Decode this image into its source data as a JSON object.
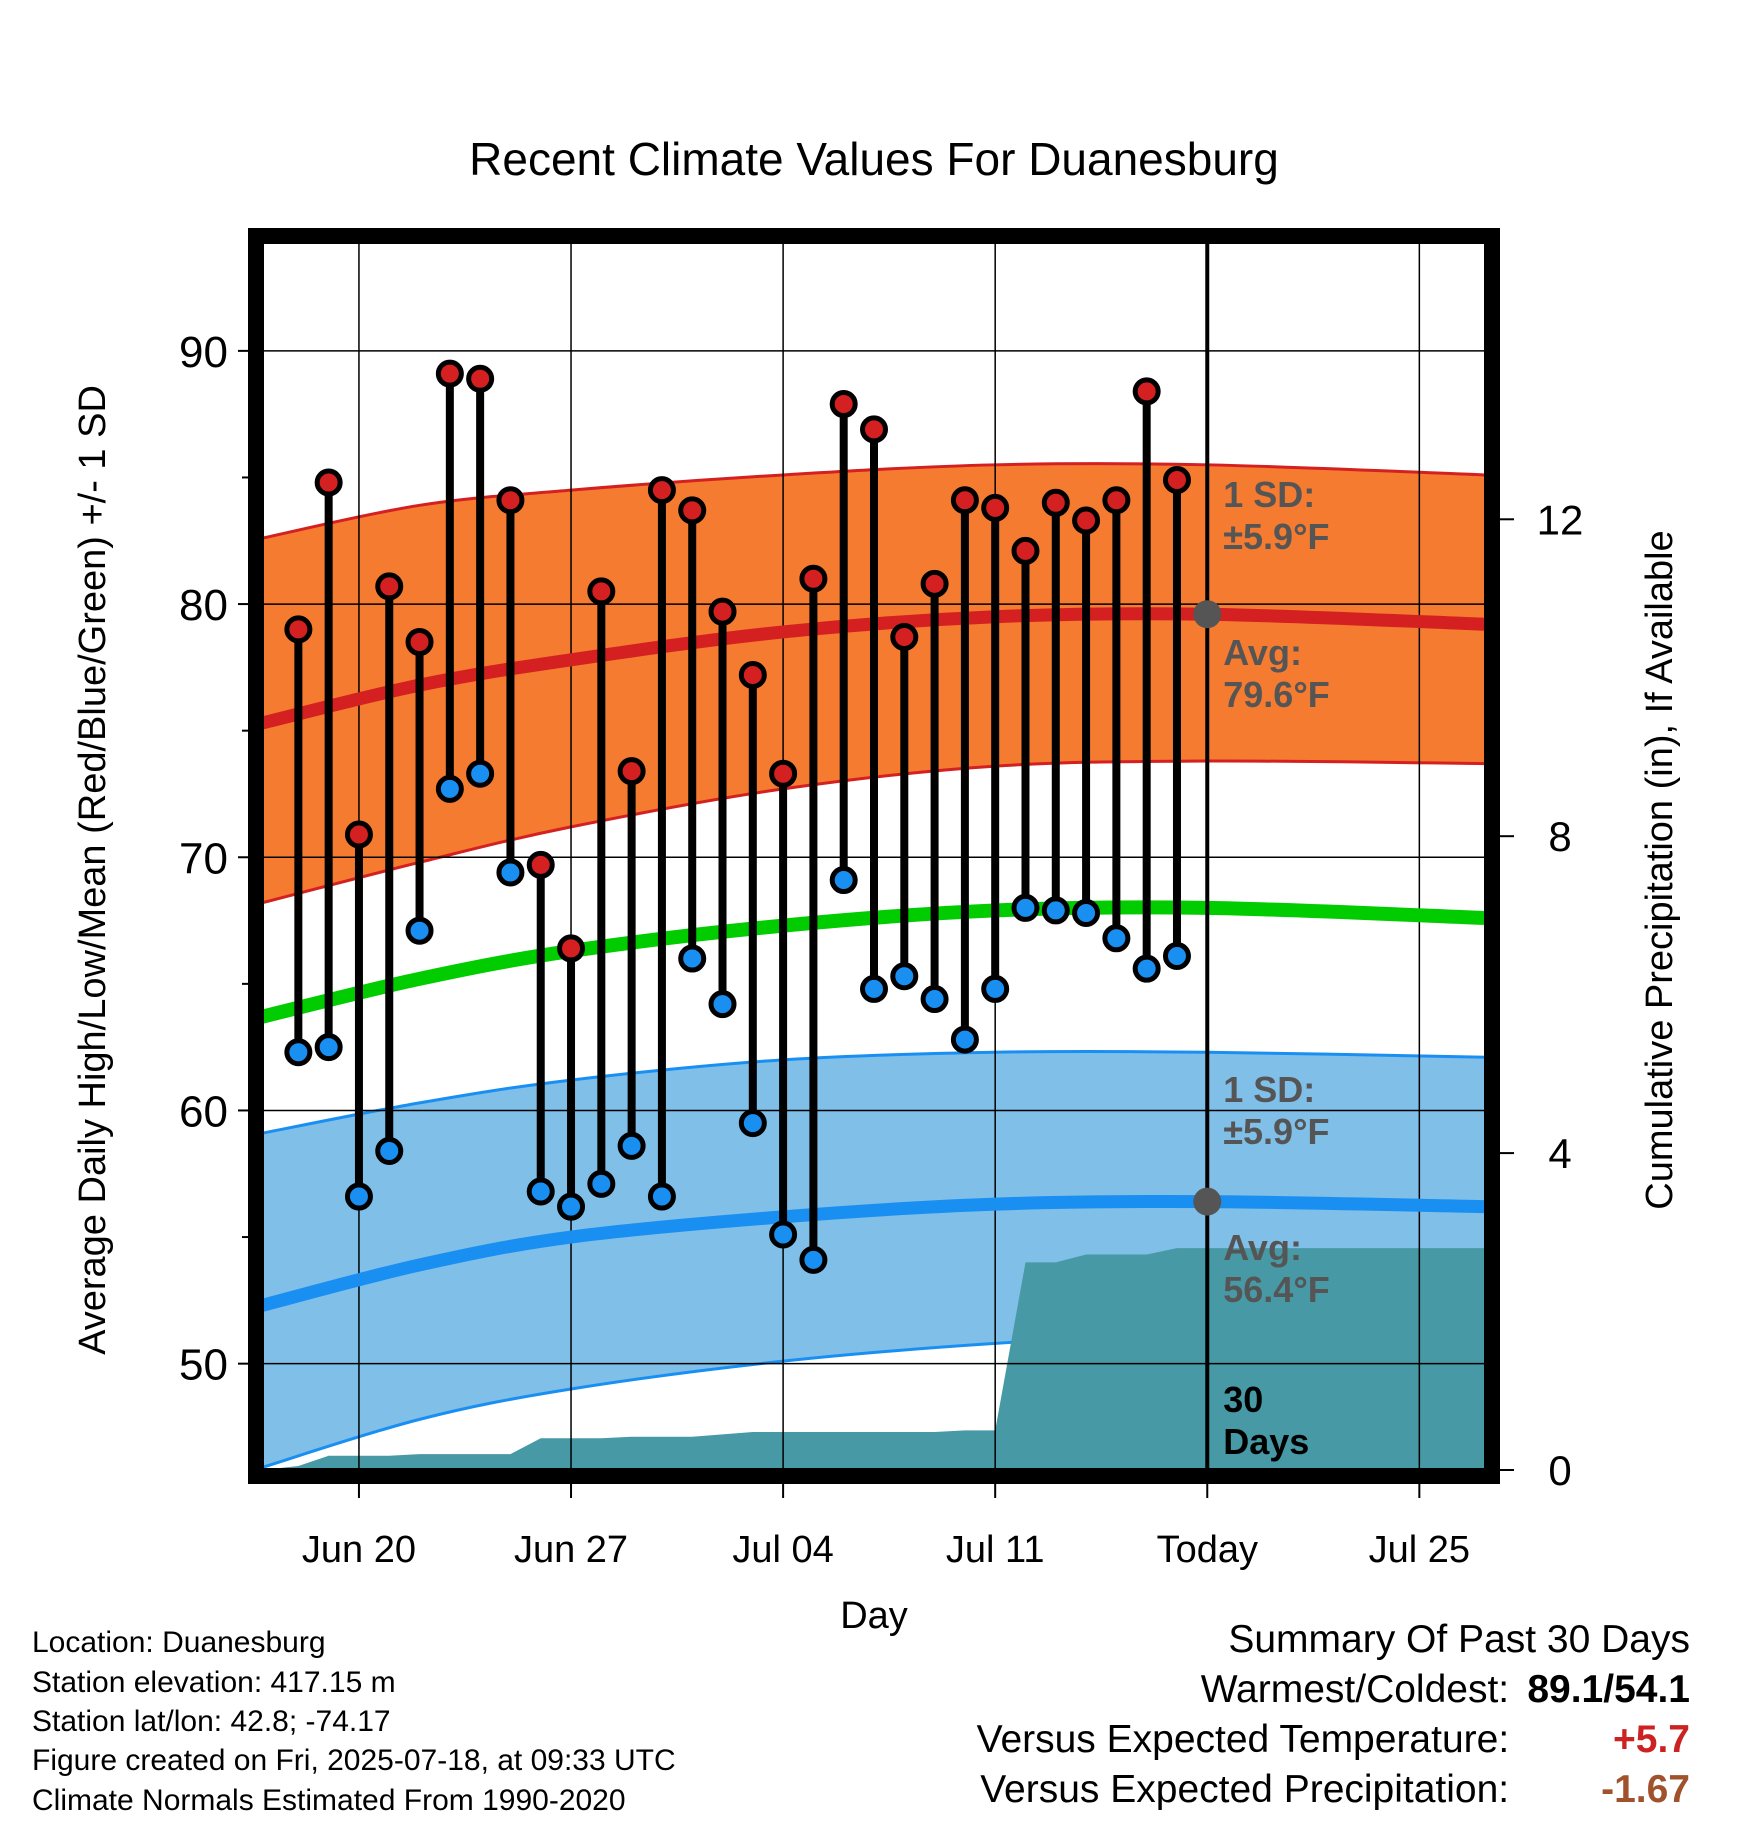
{
  "chart_data": {
    "type": "line",
    "title": "Recent Climate Values For Duanesburg",
    "xlabel": "Day",
    "ylabel_left": "Average Daily High/Low/Mean (Red/Blue/Green) +/- 1 SD",
    "ylabel_right": "Cumulative Precipitation (in), If Available",
    "x_ticks": [
      "Jun 20",
      "Jun 27",
      "Jul 04",
      "Jul 11",
      "Today",
      "Jul 25"
    ],
    "x_tick_days": [
      2,
      9,
      16,
      23,
      30,
      37
    ],
    "x_range_days": [
      -1.2,
      39.2
    ],
    "left_ylim": [
      45.8,
      94.3
    ],
    "left_ticks": [
      50,
      60,
      70,
      80,
      90
    ],
    "right_ylim": [
      0,
      15.5
    ],
    "right_ticks": [
      0,
      4,
      8,
      12
    ],
    "grid": true,
    "today_day": 30,
    "daily": {
      "days": [
        0,
        1,
        2,
        3,
        4,
        5,
        6,
        7,
        8,
        9,
        10,
        11,
        12,
        13,
        14,
        15,
        16,
        17,
        18,
        19,
        20,
        21,
        22,
        23,
        24,
        25,
        26,
        27,
        28,
        29
      ],
      "high": [
        79.0,
        84.8,
        70.9,
        80.7,
        78.5,
        89.1,
        88.9,
        84.1,
        69.7,
        66.4,
        80.5,
        73.4,
        84.5,
        83.7,
        79.7,
        77.2,
        73.3,
        81.0,
        87.9,
        86.9,
        78.7,
        80.8,
        84.1,
        83.8,
        82.1,
        84.0,
        83.3,
        84.1,
        88.4,
        84.9
      ],
      "low": [
        62.3,
        62.5,
        56.6,
        58.4,
        67.1,
        72.7,
        73.3,
        69.4,
        56.8,
        56.2,
        57.1,
        58.6,
        56.6,
        66.0,
        64.2,
        59.5,
        55.1,
        54.1,
        69.1,
        64.8,
        65.3,
        64.4,
        62.8,
        64.8,
        68.0,
        67.9,
        67.8,
        66.8,
        65.6,
        66.1
      ]
    },
    "normals": {
      "days": [
        -1.2,
        4,
        9,
        16,
        23,
        30,
        39.2
      ],
      "avg_high": [
        75.3,
        76.8,
        77.8,
        78.9,
        79.5,
        79.6,
        79.2
      ],
      "avg_high_plus_sd": [
        82.6,
        83.9,
        84.5,
        85.1,
        85.5,
        85.5,
        85.1
      ],
      "avg_high_minus_sd": [
        68.2,
        69.8,
        71.2,
        72.7,
        73.6,
        73.8,
        73.7
      ],
      "avg_mean": [
        63.7,
        65.2,
        66.3,
        67.3,
        67.9,
        68.0,
        67.6
      ],
      "avg_low": [
        52.3,
        53.9,
        55.0,
        55.8,
        56.3,
        56.4,
        56.2
      ],
      "avg_low_plus_sd": [
        59.1,
        60.3,
        61.2,
        62.0,
        62.3,
        62.3,
        62.1
      ],
      "avg_low_minus_sd": [
        45.9,
        47.8,
        49.0,
        50.1,
        50.8,
        51.2,
        51.2
      ]
    },
    "cumulative_precip": {
      "days": [
        -1.2,
        0,
        1,
        2,
        3,
        4,
        5,
        6,
        7,
        8,
        9,
        10,
        11,
        12,
        13,
        14,
        15,
        16,
        17,
        18,
        19,
        20,
        21,
        22,
        23,
        24,
        25,
        26,
        27,
        28,
        29,
        30,
        39.2
      ],
      "inches": [
        0.0,
        0.05,
        0.18,
        0.18,
        0.18,
        0.2,
        0.2,
        0.2,
        0.2,
        0.4,
        0.4,
        0.4,
        0.42,
        0.42,
        0.42,
        0.45,
        0.48,
        0.48,
        0.48,
        0.48,
        0.48,
        0.48,
        0.48,
        0.5,
        0.5,
        2.62,
        2.62,
        2.72,
        2.72,
        2.72,
        2.8,
        2.8,
        2.8
      ]
    },
    "annotations": {
      "high_sd_label": [
        "1 SD:",
        "±5.9°F"
      ],
      "high_avg_label": [
        "Avg:",
        "79.6°F"
      ],
      "low_sd_label": [
        "1 SD:",
        "±5.9°F"
      ],
      "low_avg_label": [
        "Avg:",
        "56.4°F"
      ],
      "days_label": [
        "30",
        "Days"
      ]
    }
  },
  "station_info": [
    "Location: Duanesburg",
    "Station elevation: 417.15 m",
    "Station lat/lon: 42.8; -74.17",
    "Figure created on Fri, 2025-07-18, at 09:33 UTC",
    "Climate Normals Estimated From 1990-2020"
  ],
  "summary": {
    "title": "Summary Of Past 30 Days",
    "warmest_coldest_label": "Warmest/Coldest:",
    "warmest_coldest_value": "89.1/54.1",
    "temp_label": "Versus Expected Temperature:",
    "temp_value": "+5.7",
    "precip_label": "Versus Expected Precipitation:",
    "precip_value": "-1.67"
  },
  "colors": {
    "high_band": "#f47b30",
    "high_line": "#d42020",
    "high_band_edge": "#d42020",
    "low_band": "#80bfe8",
    "low_line": "#1a8ff2",
    "low_band_edge": "#1a8ff2",
    "mean_line": "#00cc00",
    "precip": "#4799a5",
    "high_dot": "#d42020",
    "low_dot": "#1a8ff2",
    "label_gray": "#555555",
    "temp_anomaly": "#cc2222",
    "precip_anomaly": "#a0522d"
  }
}
